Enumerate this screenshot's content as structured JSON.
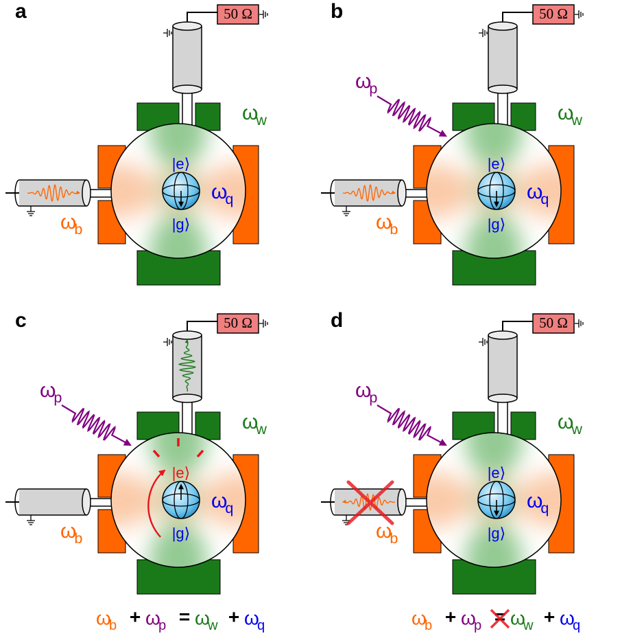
{
  "panels": [
    {
      "label": "a",
      "resistor": "50 Ω",
      "excited": "|e⟩",
      "ground": "|g⟩",
      "omega_w": {
        "base": "ω",
        "sub": "w"
      },
      "omega_q": {
        "base": "ω",
        "sub": "q"
      },
      "omega_b": {
        "base": "ω",
        "sub": "b"
      }
    },
    {
      "label": "b",
      "resistor": "50 Ω",
      "excited": "|e⟩",
      "ground": "|g⟩",
      "omega_w": {
        "base": "ω",
        "sub": "w"
      },
      "omega_q": {
        "base": "ω",
        "sub": "q"
      },
      "omega_b": {
        "base": "ω",
        "sub": "b"
      },
      "omega_p": {
        "base": "ω",
        "sub": "p"
      }
    },
    {
      "label": "c",
      "resistor": "50 Ω",
      "excited": "|e⟩",
      "ground": "|g⟩",
      "omega_w": {
        "base": "ω",
        "sub": "w"
      },
      "omega_q": {
        "base": "ω",
        "sub": "q"
      },
      "omega_b": {
        "base": "ω",
        "sub": "b"
      },
      "omega_p": {
        "base": "ω",
        "sub": "p"
      }
    },
    {
      "label": "d",
      "resistor": "50 Ω",
      "excited": "|e⟩",
      "ground": "|g⟩",
      "omega_w": {
        "base": "ω",
        "sub": "w"
      },
      "omega_q": {
        "base": "ω",
        "sub": "q"
      },
      "omega_b": {
        "base": "ω",
        "sub": "b"
      },
      "omega_p": {
        "base": "ω",
        "sub": "p"
      }
    }
  ],
  "equations": [
    {
      "terms": [
        {
          "base": "ω",
          "sub": "b"
        },
        {
          "text": "+"
        },
        {
          "base": "ω",
          "sub": "p"
        },
        {
          "text": "="
        },
        {
          "base": "ω",
          "sub": "w"
        },
        {
          "text": "+"
        },
        {
          "base": "ω",
          "sub": "q"
        }
      ]
    },
    {
      "terms": [
        {
          "base": "ω",
          "sub": "b"
        },
        {
          "text": "+"
        },
        {
          "base": "ω",
          "sub": "p"
        },
        {
          "text": "="
        },
        {
          "base": "ω",
          "sub": "w"
        },
        {
          "text": "+"
        },
        {
          "base": "ω",
          "sub": "q"
        }
      ]
    }
  ]
}
